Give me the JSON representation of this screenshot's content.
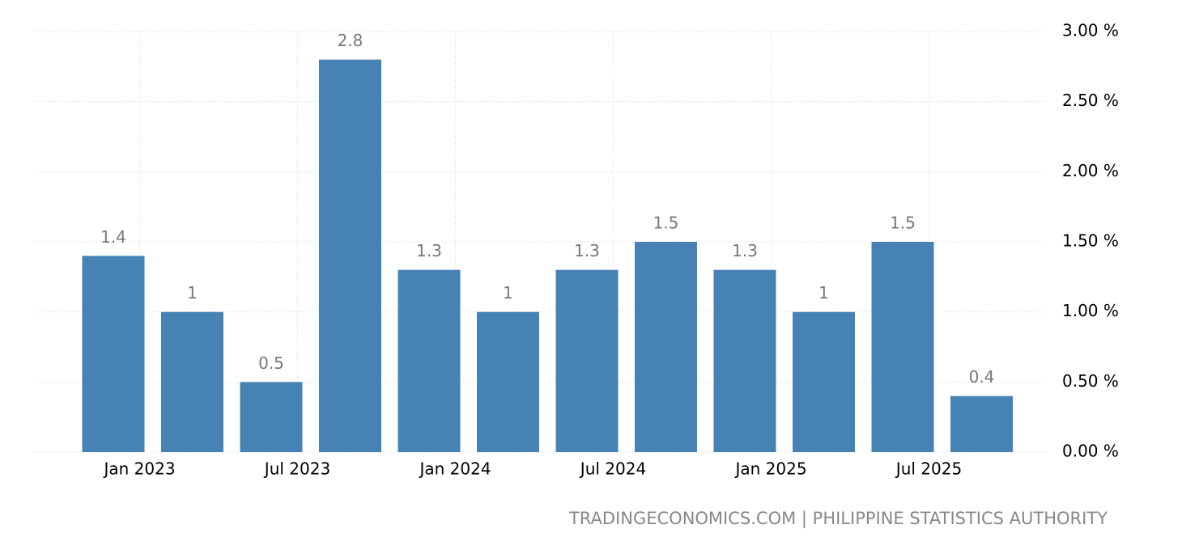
{
  "chart_data": {
    "type": "bar",
    "categories": [
      "Jan 2023",
      null,
      "Jul 2023",
      null,
      "Jan 2024",
      null,
      "Jul 2024",
      null,
      "Jan 2025",
      null,
      "Jul 2025",
      null
    ],
    "values": [
      1.4,
      1,
      0.5,
      2.8,
      1.3,
      1,
      1.3,
      1.5,
      1.3,
      1,
      1.5,
      0.4
    ],
    "color": "#4682b4",
    "ylim": [
      0,
      3
    ],
    "yticks": [
      {
        "value": 0,
        "label": "0.00 %"
      },
      {
        "value": 0.5,
        "label": "0.50 %"
      },
      {
        "value": 1,
        "label": "1.00 %"
      },
      {
        "value": 1.5,
        "label": "1.50 %"
      },
      {
        "value": 2,
        "label": "2.00 %"
      },
      {
        "value": 2.5,
        "label": "2.50 %"
      },
      {
        "value": 3,
        "label": "3.00 %"
      }
    ],
    "grid": true,
    "source": "TRADINGECONOMICS.COM | PHILIPPINE STATISTICS AUTHORITY"
  }
}
